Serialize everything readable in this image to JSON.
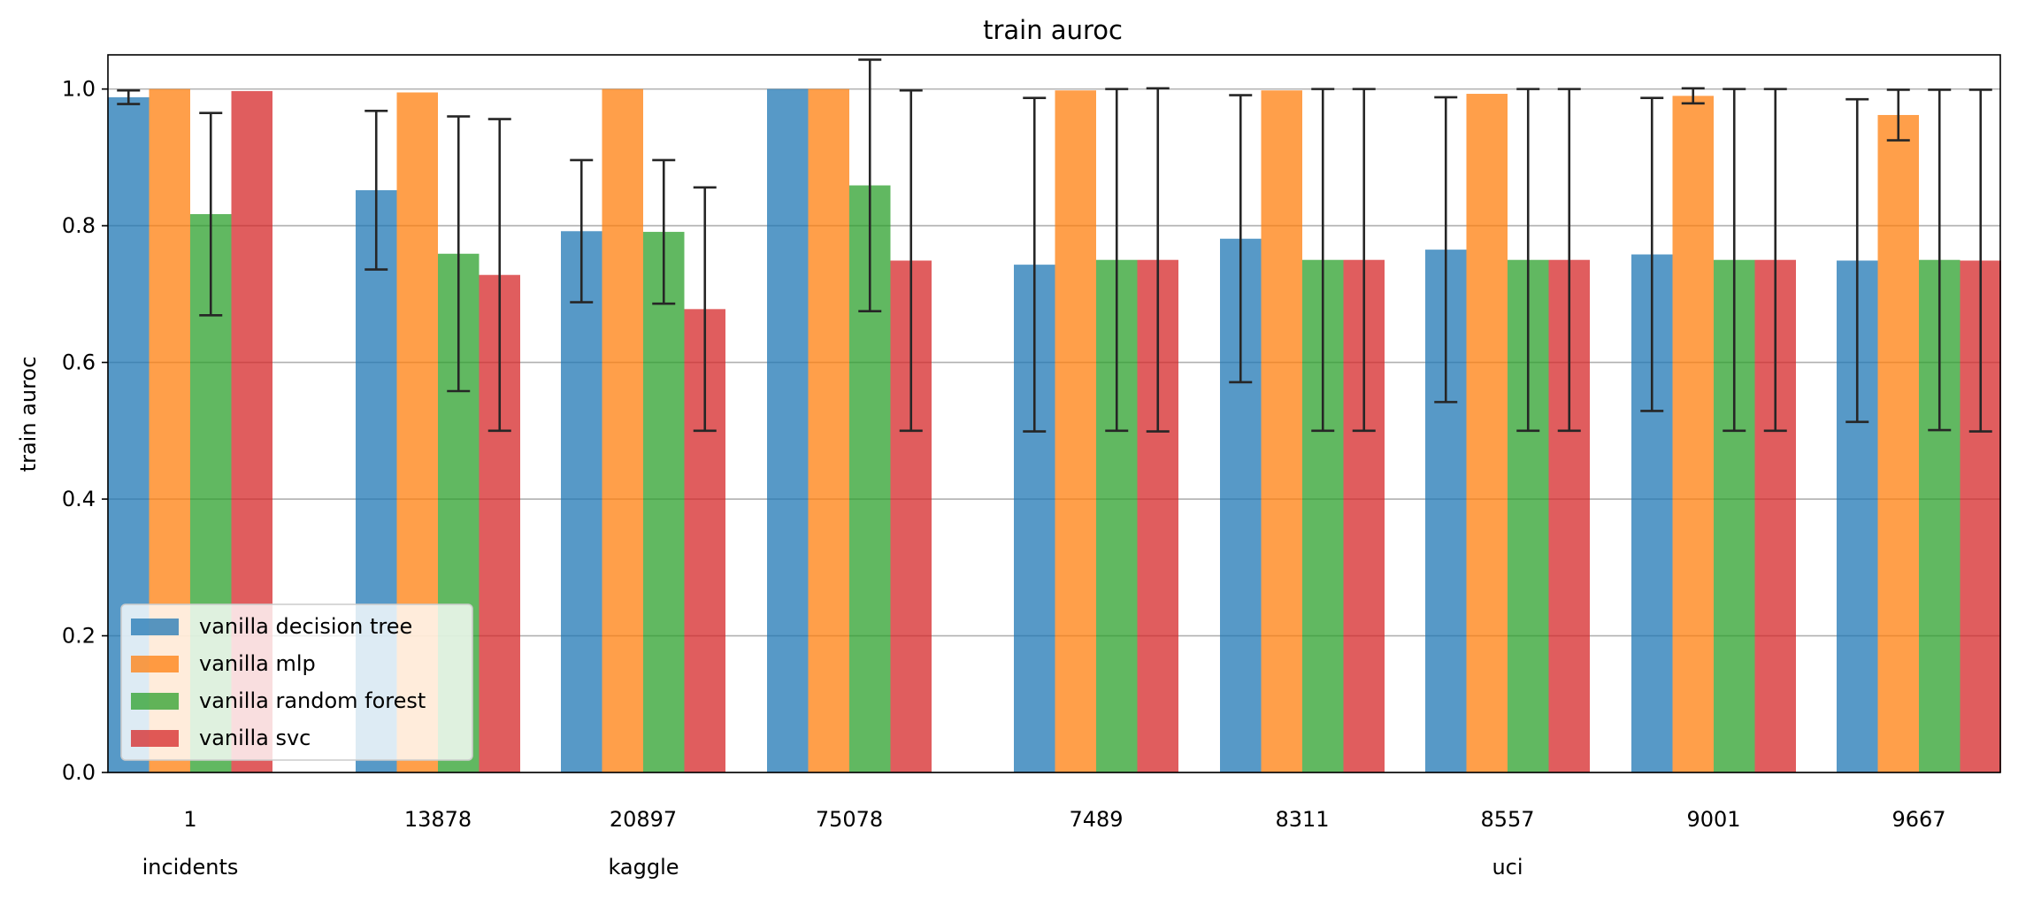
{
  "chart_data": {
    "type": "bar",
    "title": "train auroc",
    "xlabel": "",
    "ylabel": "train auroc",
    "ylim": [
      0,
      1.05
    ],
    "yticks": [
      0.0,
      0.2,
      0.4,
      0.6,
      0.8,
      1.0
    ],
    "ytick_labels": [
      "0.0",
      "0.2",
      "0.4",
      "0.6",
      "0.8",
      "1.0"
    ],
    "grid": "horizontal",
    "legend_position": "bottom-left",
    "categories": [
      "1",
      "13878",
      "20897",
      "75078",
      "7489",
      "8311",
      "8557",
      "9001",
      "9667"
    ],
    "groups": [
      {
        "label": "incidents",
        "categories": [
          "1"
        ]
      },
      {
        "label": "kaggle",
        "categories": [
          "13878",
          "20897",
          "75078"
        ]
      },
      {
        "label": "uci",
        "categories": [
          "7489",
          "8311",
          "8557",
          "9001",
          "9667"
        ]
      }
    ],
    "series": [
      {
        "name": "vanilla decision tree",
        "color": "#1f77b4",
        "values": [
          0.988,
          0.852,
          0.792,
          1.0,
          0.743,
          0.781,
          0.765,
          0.758,
          0.749
        ],
        "errors": [
          0.01,
          0.116,
          0.104,
          0.0,
          0.244,
          0.21,
          0.223,
          0.229,
          0.236
        ]
      },
      {
        "name": "vanilla mlp",
        "color": "#ff7f0e",
        "values": [
          1.0,
          0.995,
          1.0,
          1.0,
          0.998,
          0.998,
          0.993,
          0.99,
          0.962
        ],
        "errors": [
          0.0,
          0.0,
          0.0,
          0.0,
          0.0,
          0.0,
          0.0,
          0.011,
          0.037
        ]
      },
      {
        "name": "vanilla random forest",
        "color": "#2ca02c",
        "values": [
          0.817,
          0.759,
          0.791,
          0.859,
          0.75,
          0.75,
          0.75,
          0.75,
          0.75
        ],
        "errors": [
          0.148,
          0.201,
          0.105,
          0.184,
          0.25,
          0.25,
          0.25,
          0.25,
          0.249
        ]
      },
      {
        "name": "vanilla svc",
        "color": "#d62728",
        "values": [
          0.997,
          0.728,
          0.678,
          0.749,
          0.75,
          0.75,
          0.75,
          0.75,
          0.749
        ],
        "errors": [
          0.0,
          0.228,
          0.178,
          0.249,
          0.251,
          0.25,
          0.25,
          0.25,
          0.25
        ]
      }
    ]
  }
}
